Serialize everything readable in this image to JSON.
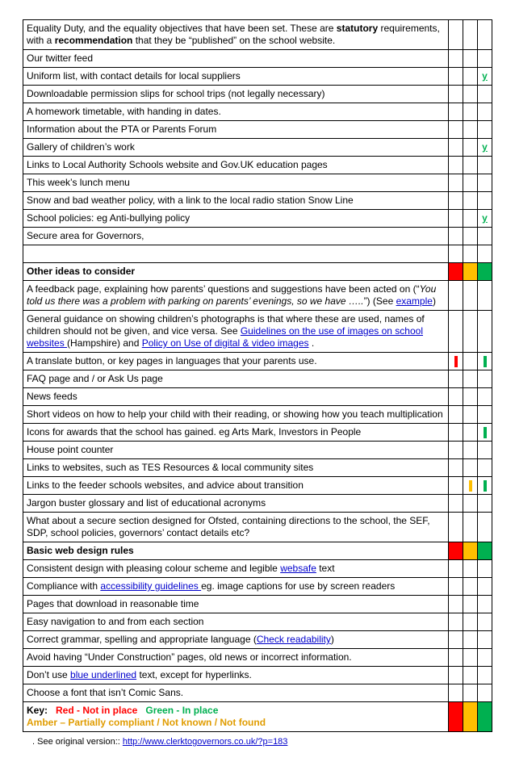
{
  "rows": [
    {
      "type": "text",
      "html": "Equality Duty, and the equality objectives that have been set. These are <b>statutory</b> requirements, with a <b>recommendation</b> that they be &ldquo;published&rdquo; on the school website.",
      "ind": [
        "",
        "",
        ""
      ]
    },
    {
      "type": "text",
      "html": "Our twitter feed",
      "ind": [
        "",
        "",
        ""
      ]
    },
    {
      "type": "text",
      "html": "Uniform list, with contact details for local suppliers",
      "ind": [
        "",
        "",
        "y"
      ]
    },
    {
      "type": "text",
      "html": "Downloadable permission slips for school trips (not legally necessary)",
      "ind": [
        "",
        "",
        ""
      ]
    },
    {
      "type": "text",
      "html": "A homework timetable, with handing in dates.",
      "ind": [
        "",
        "",
        ""
      ]
    },
    {
      "type": "text",
      "html": "Information about the PTA or Parents Forum",
      "ind": [
        "",
        "",
        ""
      ]
    },
    {
      "type": "text",
      "html": "Gallery of children&rsquo;s work",
      "ind": [
        "",
        "",
        "y"
      ]
    },
    {
      "type": "text",
      "html": "Links to Local Authority Schools website and Gov.UK education pages",
      "ind": [
        "",
        "",
        ""
      ]
    },
    {
      "type": "text",
      "html": "This week&rsquo;s lunch menu",
      "ind": [
        "",
        "",
        ""
      ]
    },
    {
      "type": "text",
      "html": "Snow and bad weather policy, with a link to the local radio station Snow Line",
      "ind": [
        "",
        "",
        ""
      ]
    },
    {
      "type": "text",
      "html": "School policies: eg Anti-bullying policy",
      "ind": [
        "",
        "",
        "y"
      ]
    },
    {
      "type": "text",
      "html": "Secure area for Governors,",
      "ind": [
        "",
        "",
        ""
      ]
    },
    {
      "type": "blank"
    },
    {
      "type": "header",
      "html": "<b>Other ideas to consider</b>",
      "ind": [
        "bg-red",
        "bg-amber",
        "bg-green"
      ]
    },
    {
      "type": "text",
      "html": "A feedback page, explaining how parents&rsquo; questions and suggestions have been acted on (&ldquo;<i>You told us there was a problem with parking on parents&rsquo; evenings, so we have &hellip;..</i>&rdquo;) (See <a class='link' href='#'>example</a>)",
      "ind": [
        "",
        "",
        ""
      ]
    },
    {
      "type": "text",
      "html": "General guidance on showing children&rsquo;s photographs is that where these are used, names of children should not be given, and vice versa. See <a class='link' href='#'>Guidelines on the use of images on school websites </a>(Hampshire) and <a class='link' href='#'>Policy on Use of digital &amp; video images</a> .",
      "ind": [
        "",
        "",
        ""
      ]
    },
    {
      "type": "text",
      "html": "A translate button, or key pages in languages that your parents use.",
      "ind": [
        "mark-red",
        "",
        "mark-green"
      ]
    },
    {
      "type": "text",
      "html": "FAQ page and / or Ask Us page",
      "ind": [
        "",
        "",
        ""
      ]
    },
    {
      "type": "text",
      "html": "News feeds",
      "ind": [
        "",
        "",
        ""
      ]
    },
    {
      "type": "text",
      "html": "Short videos on how to help your child with their reading, or showing how you teach multiplication",
      "ind": [
        "",
        "",
        ""
      ]
    },
    {
      "type": "text",
      "html": "Icons for awards that the school has gained. eg Arts Mark, Investors in People",
      "ind": [
        "",
        "",
        "mark-green"
      ]
    },
    {
      "type": "text",
      "html": "House point counter",
      "ind": [
        "",
        "",
        ""
      ]
    },
    {
      "type": "text",
      "html": "Links to websites, such as TES Resources &amp; local community sites",
      "ind": [
        "",
        "",
        ""
      ]
    },
    {
      "type": "text",
      "html": "Links to the feeder schools websites, and advice about transition",
      "ind": [
        "",
        "mark-amber",
        "mark-green"
      ]
    },
    {
      "type": "text",
      "html": "Jargon buster glossary and list of educational acronyms",
      "ind": [
        "",
        "",
        ""
      ]
    },
    {
      "type": "text",
      "html": "What about a secure section designed for Ofsted, containing directions to the school, the SEF, SDP, school policies, governors&rsquo; contact details etc?",
      "ind": [
        "",
        "",
        ""
      ]
    },
    {
      "type": "header",
      "html": "<b>Basic web design rules</b>",
      "ind": [
        "bg-red",
        "bg-amber",
        "bg-green"
      ]
    },
    {
      "type": "text",
      "html": "Consistent design with pleasing colour scheme and legible <a class='link' href='#'>websafe</a> text",
      "ind": [
        "",
        "",
        ""
      ]
    },
    {
      "type": "text",
      "html": "Compliance with <a class='link' href='#'>accessibility guidelines </a> eg. image captions for use by screen readers",
      "ind": [
        "",
        "",
        ""
      ]
    },
    {
      "type": "text",
      "html": "Pages that download in reasonable time",
      "ind": [
        "",
        "",
        ""
      ]
    },
    {
      "type": "text",
      "html": "Easy navigation to and from each section",
      "ind": [
        "",
        "",
        ""
      ]
    },
    {
      "type": "text",
      "html": "Correct grammar, spelling and appropriate language (<a class='link' href='#'>Check readability</a>)",
      "ind": [
        "",
        "",
        ""
      ]
    },
    {
      "type": "text",
      "html": "Avoid having &ldquo;Under Construction&rdquo; pages, old news or incorrect information.",
      "ind": [
        "",
        "",
        ""
      ]
    },
    {
      "type": "text",
      "html": "Don&rsquo;t use <a class='link' href='#'>blue underlined</a> text, except for hyperlinks.",
      "ind": [
        "",
        "",
        ""
      ]
    },
    {
      "type": "text",
      "html": "Choose a font that isn&rsquo;t Comic Sans.",
      "ind": [
        "",
        "",
        ""
      ]
    },
    {
      "type": "key",
      "html": "<b>Key:&nbsp;&nbsp;&nbsp;<span class='key-red'>Red - Not in place</span>&nbsp;&nbsp;&nbsp;<span class='key-green'>Green - In place</span><br><span class='key-amber'>Amber &ndash; Partially compliant / Not known / Not found</span></b>",
      "ind": [
        "bg-red",
        "bg-amber",
        "bg-green"
      ]
    }
  ],
  "footnote": {
    "prefix": ". See original  version::  ",
    "url": "http://www.clerktogovernors.co.uk/?p=183"
  }
}
